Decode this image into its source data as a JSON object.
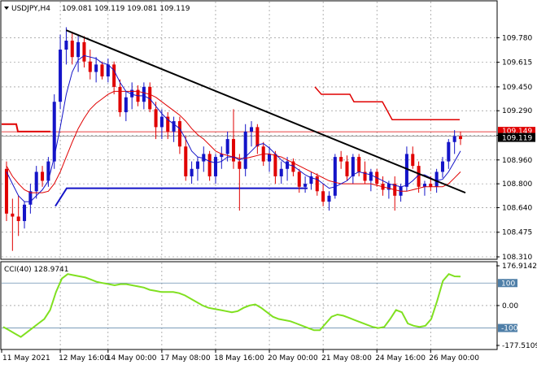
{
  "header": {
    "symbol": "USDJPY,H4",
    "ohlc": "109.081 109.119 109.081 109.119"
  },
  "colors": {
    "bull": "#1414c8",
    "bear": "#e00000",
    "trendline": "#000000",
    "ma_fast": "#1414c8",
    "ma_slow": "#e00000",
    "level_line": "#e00000",
    "cci": "#80e020",
    "bid_line": "#808080",
    "grid": "#7f7f7f",
    "price_label_bg": "#000000",
    "price_label_red_bg": "#e00000"
  },
  "icons": {
    "collapse": "triangle-down-icon"
  },
  "chart_data": [
    {
      "type": "candlestick",
      "symbol": "USDJPY",
      "timeframe": "H4",
      "ylim": [
        108.31,
        110.0
      ],
      "y_ticks": [
        "109.780",
        "109.615",
        "109.450",
        "109.290",
        "109.125",
        "108.960",
        "108.800",
        "108.640",
        "108.475",
        "108.310"
      ],
      "x_ticks": [
        "11 May 2021",
        "12 May 16:00",
        "14 May 00:00",
        "17 May 08:00",
        "18 May 16:00",
        "20 May 00:00",
        "21 May 08:00",
        "24 May 16:00",
        "26 May 00:00"
      ],
      "current_price": "109.119",
      "price_label_red": "109.149",
      "candles": [
        [
          108.9,
          108.95,
          108.55,
          108.6
        ],
        [
          108.6,
          108.7,
          108.35,
          108.58
        ],
        [
          108.58,
          108.72,
          108.45,
          108.55
        ],
        [
          108.55,
          108.68,
          108.5,
          108.66
        ],
        [
          108.66,
          108.8,
          108.6,
          108.75
        ],
        [
          108.75,
          108.92,
          108.7,
          108.88
        ],
        [
          108.88,
          108.92,
          108.78,
          108.82
        ],
        [
          108.82,
          108.98,
          108.78,
          108.95
        ],
        [
          108.95,
          109.4,
          108.9,
          109.35
        ],
        [
          109.35,
          109.8,
          109.3,
          109.7
        ],
        [
          109.7,
          109.85,
          109.6,
          109.76
        ],
        [
          109.76,
          109.82,
          109.6,
          109.65
        ],
        [
          109.65,
          109.8,
          109.55,
          109.75
        ],
        [
          109.75,
          109.79,
          109.58,
          109.62
        ],
        [
          109.62,
          109.7,
          109.5,
          109.55
        ],
        [
          109.55,
          109.65,
          109.48,
          109.6
        ],
        [
          109.6,
          109.62,
          109.5,
          109.52
        ],
        [
          109.52,
          109.64,
          109.48,
          109.6
        ],
        [
          109.6,
          109.62,
          109.4,
          109.45
        ],
        [
          109.45,
          109.5,
          109.25,
          109.28
        ],
        [
          109.28,
          109.42,
          109.22,
          109.38
        ],
        [
          109.38,
          109.48,
          109.3,
          109.43
        ],
        [
          109.43,
          109.46,
          109.32,
          109.35
        ],
        [
          109.35,
          109.48,
          109.3,
          109.45
        ],
        [
          109.45,
          109.48,
          109.28,
          109.3
        ],
        [
          109.3,
          109.35,
          109.1,
          109.18
        ],
        [
          109.18,
          109.3,
          109.1,
          109.25
        ],
        [
          109.25,
          109.28,
          109.1,
          109.15
        ],
        [
          109.15,
          109.25,
          109.08,
          109.22
        ],
        [
          109.22,
          109.25,
          109.0,
          109.05
        ],
        [
          109.05,
          109.12,
          108.82,
          108.85
        ],
        [
          108.85,
          108.95,
          108.8,
          108.9
        ],
        [
          108.9,
          108.98,
          108.82,
          108.95
        ],
        [
          108.95,
          109.05,
          108.88,
          109.0
        ],
        [
          109.0,
          109.02,
          108.82,
          108.85
        ],
        [
          108.85,
          109.0,
          108.8,
          108.98
        ],
        [
          108.98,
          109.05,
          108.9,
          109.0
        ],
        [
          109.0,
          109.15,
          108.95,
          109.1
        ],
        [
          109.1,
          109.3,
          108.9,
          108.95
        ],
        [
          108.95,
          109.0,
          108.62,
          108.9
        ],
        [
          108.9,
          109.2,
          108.85,
          109.15
        ],
        [
          109.15,
          109.22,
          109.05,
          109.18
        ],
        [
          109.18,
          109.2,
          109.0,
          109.05
        ],
        [
          109.05,
          109.08,
          108.92,
          108.95
        ],
        [
          108.95,
          109.05,
          108.88,
          109.0
        ],
        [
          109.0,
          109.02,
          108.8,
          108.85
        ],
        [
          108.85,
          108.95,
          108.8,
          108.9
        ],
        [
          108.9,
          108.98,
          108.82,
          108.95
        ],
        [
          108.95,
          108.97,
          108.85,
          108.88
        ],
        [
          108.88,
          108.9,
          108.74,
          108.78
        ],
        [
          108.78,
          108.85,
          108.74,
          108.8
        ],
        [
          108.8,
          108.88,
          108.76,
          108.85
        ],
        [
          108.85,
          108.87,
          108.72,
          108.75
        ],
        [
          108.75,
          108.8,
          108.65,
          108.68
        ],
        [
          108.68,
          108.75,
          108.62,
          108.72
        ],
        [
          108.72,
          109.0,
          108.7,
          108.98
        ],
        [
          108.98,
          109.02,
          108.9,
          108.95
        ],
        [
          108.95,
          108.99,
          108.82,
          108.85
        ],
        [
          108.85,
          109.0,
          108.8,
          108.98
        ],
        [
          108.98,
          109.0,
          108.85,
          108.88
        ],
        [
          108.88,
          108.95,
          108.8,
          108.82
        ],
        [
          108.82,
          108.9,
          108.75,
          108.88
        ],
        [
          108.88,
          108.9,
          108.78,
          108.8
        ],
        [
          108.8,
          108.85,
          108.72,
          108.76
        ],
        [
          108.76,
          108.82,
          108.7,
          108.8
        ],
        [
          108.8,
          108.85,
          108.62,
          108.72
        ],
        [
          108.72,
          108.8,
          108.68,
          108.78
        ],
        [
          108.78,
          109.05,
          108.75,
          109.0
        ],
        [
          109.0,
          109.05,
          108.9,
          108.92
        ],
        [
          108.92,
          108.95,
          108.74,
          108.78
        ],
        [
          108.78,
          108.82,
          108.72,
          108.8
        ],
        [
          108.8,
          108.85,
          108.75,
          108.78
        ],
        [
          108.78,
          108.9,
          108.74,
          108.88
        ],
        [
          108.88,
          108.98,
          108.84,
          108.95
        ],
        [
          108.95,
          109.1,
          108.9,
          109.08
        ],
        [
          109.08,
          109.16,
          109.0,
          109.12
        ],
        [
          109.12,
          109.15,
          109.06,
          109.1
        ]
      ],
      "ma_fast": [
        108.88,
        108.8,
        108.72,
        108.68,
        108.68,
        108.72,
        108.76,
        108.82,
        108.98,
        109.18,
        109.4,
        109.55,
        109.63,
        109.66,
        109.65,
        109.64,
        109.61,
        109.6,
        109.56,
        109.48,
        109.42,
        109.4,
        109.39,
        109.39,
        109.37,
        109.32,
        109.27,
        109.23,
        109.2,
        109.17,
        109.1,
        109.02,
        108.98,
        108.97,
        108.95,
        108.94,
        108.95,
        108.98,
        108.98,
        108.96,
        108.98,
        109.02,
        109.06,
        109.07,
        109.04,
        109.0,
        108.96,
        108.93,
        108.92,
        108.89,
        108.86,
        108.84,
        108.83,
        108.8,
        108.77,
        108.78,
        108.8,
        108.82,
        108.86,
        108.88,
        108.87,
        108.86,
        108.84,
        108.82,
        108.8,
        108.79,
        108.78,
        108.79,
        108.82,
        108.86,
        108.86,
        108.84,
        108.82,
        108.83,
        108.88,
        108.95,
        109.02
      ],
      "ma_slow": [
        108.92,
        108.85,
        108.8,
        108.76,
        108.74,
        108.74,
        108.74,
        108.75,
        108.8,
        108.88,
        108.98,
        109.08,
        109.17,
        109.24,
        109.3,
        109.34,
        109.37,
        109.4,
        109.42,
        109.42,
        109.42,
        109.42,
        109.42,
        109.41,
        109.4,
        109.38,
        109.35,
        109.32,
        109.29,
        109.26,
        109.22,
        109.17,
        109.13,
        109.1,
        109.06,
        109.02,
        109.0,
        108.99,
        108.98,
        108.97,
        108.97,
        108.98,
        108.99,
        109.0,
        109.0,
        108.99,
        108.98,
        108.96,
        108.94,
        108.92,
        108.9,
        108.88,
        108.86,
        108.84,
        108.82,
        108.81,
        108.8,
        108.8,
        108.8,
        108.8,
        108.8,
        108.8,
        108.79,
        108.78,
        108.77,
        108.76,
        108.75,
        108.75,
        108.76,
        108.77,
        108.78,
        108.78,
        108.78,
        108.78,
        108.8,
        108.84,
        108.88
      ]
    },
    {
      "type": "line",
      "title": "CCI(40) 128.9741",
      "ylim": [
        -177.5109,
        176.9142
      ],
      "y_ticks": [
        "176.9142",
        "100",
        "0.00",
        "-100",
        "-177.5109"
      ],
      "series": [
        {
          "values": [
            -95,
            -110,
            -125,
            -140,
            -120,
            -100,
            -80,
            -60,
            -20,
            60,
            120,
            140,
            135,
            130,
            125,
            115,
            105,
            100,
            95,
            90,
            95,
            95,
            90,
            85,
            80,
            70,
            65,
            60,
            60,
            60,
            55,
            45,
            30,
            15,
            0,
            -10,
            -15,
            -20,
            -25,
            -30,
            -25,
            -10,
            0,
            5,
            -10,
            -30,
            -50,
            -60,
            -65,
            -70,
            -80,
            -90,
            -100,
            -110,
            -110,
            -80,
            -50,
            -40,
            -45,
            -55,
            -65,
            -75,
            -85,
            -95,
            -100,
            -95,
            -60,
            -20,
            -30,
            -80,
            -90,
            -95,
            -90,
            -60,
            20,
            110,
            140,
            130,
            128.97
          ]
        }
      ]
    }
  ]
}
